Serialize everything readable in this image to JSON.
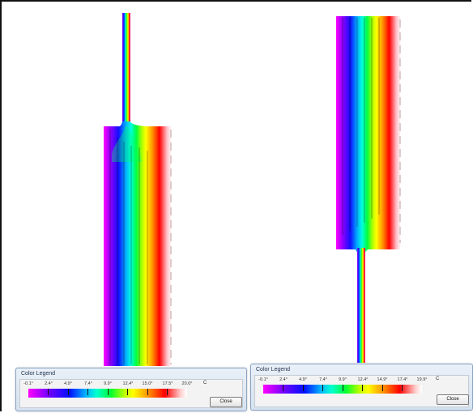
{
  "legend_left": {
    "title": "Color Legend",
    "tick_labels": [
      "-0.1°",
      "2.4°",
      "4.9°",
      "7.4°",
      "9.9°",
      "12.4°",
      "15.0°",
      "17.5°",
      "20.0°"
    ],
    "unit": "C",
    "close_label": "Close"
  },
  "legend_right": {
    "title": "Color Legend",
    "tick_labels": [
      "-0.1°",
      "2.4°",
      "4.9°",
      "7.4°",
      "9.9°",
      "12.4°",
      "14.9°",
      "17.4°",
      "19.9°"
    ],
    "unit": "C",
    "close_label": "Close"
  },
  "colors": {
    "scale_low": "#ff00ff",
    "scale_mid": "#00ff30",
    "scale_high": "#ffffff"
  }
}
